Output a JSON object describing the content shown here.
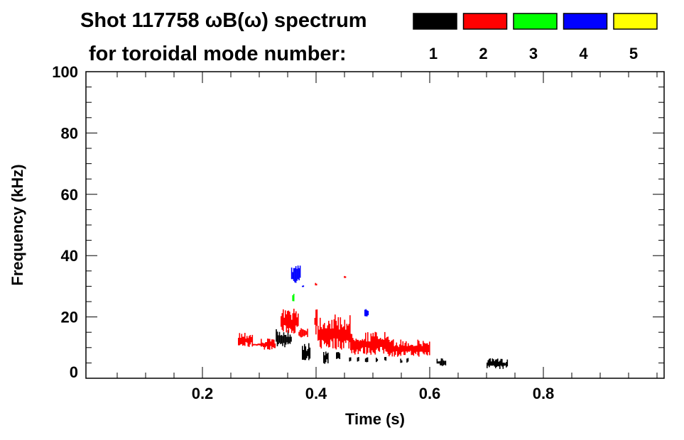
{
  "chart_data": {
    "type": "heatmap",
    "title": "Shot 117758 ωB(ω) spectrum",
    "subtitle": "for toroidal mode number:",
    "xlabel": "Time (s)",
    "ylabel": "Frequency (kHz)",
    "xlim": [
      -0.005,
      1.0125
    ],
    "ylim": [
      0,
      100
    ],
    "xticks": [
      0.2,
      0.4,
      0.6,
      0.8
    ],
    "xtick_labels": [
      "0.2",
      "0.4",
      "0.6",
      "0.8"
    ],
    "x_minor_step": 0.05,
    "yticks": [
      0,
      20,
      40,
      60,
      80,
      100
    ],
    "ytick_labels": [
      "0",
      "20",
      "40",
      "60",
      "80",
      "100"
    ],
    "y_minor_step": 5,
    "legend": [
      {
        "label": "1",
        "color": "#000000"
      },
      {
        "label": "2",
        "color": "#ff0000"
      },
      {
        "label": "3",
        "color": "#00ff00"
      },
      {
        "label": "4",
        "color": "#0000ff"
      },
      {
        "label": "5",
        "color": "#ffff00"
      }
    ],
    "legend_placement": "top-right",
    "series": [
      {
        "name": "n=1",
        "color": "#000000",
        "regions": [
          [
            0.329,
            0.356,
            10,
            16
          ],
          [
            0.375,
            0.39,
            5.3,
            11.6
          ],
          [
            0.4125,
            0.421,
            4.6,
            9.5
          ],
          [
            0.435,
            0.441,
            6,
            9
          ],
          [
            0.458,
            0.461,
            5,
            8
          ],
          [
            0.472,
            0.475,
            5,
            7.5
          ],
          [
            0.486,
            0.49,
            5,
            7.5
          ],
          [
            0.505,
            0.508,
            5,
            7
          ],
          [
            0.52,
            0.522,
            5.5,
            7
          ],
          [
            0.548,
            0.55,
            5,
            6.5
          ],
          [
            0.559,
            0.561,
            5,
            7
          ],
          [
            0.612,
            0.628,
            4,
            6.5
          ],
          [
            0.7,
            0.737,
            3,
            6.5
          ]
        ]
      },
      {
        "name": "n=2",
        "color": "#ff0000",
        "regions": [
          [
            0.2625,
            0.2875,
            10,
            15.3
          ],
          [
            0.2875,
            0.3025,
            10.6,
            11.4
          ],
          [
            0.3025,
            0.3275,
            9.3,
            13
          ],
          [
            0.3375,
            0.369,
            14.6,
            22.7
          ],
          [
            0.369,
            0.385,
            12.7,
            17
          ],
          [
            0.397,
            0.4025,
            14,
            24
          ],
          [
            0.4025,
            0.46,
            9.3,
            20.8
          ],
          [
            0.46,
            0.5275,
            7.6,
            15.3
          ],
          [
            0.5275,
            0.6,
            7,
            12.7
          ],
          [
            0.398,
            0.4,
            30,
            31.5
          ],
          [
            0.449,
            0.451,
            32.5,
            33.5
          ]
        ]
      },
      {
        "name": "n=3",
        "color": "#00ff00",
        "regions": [
          [
            0.358,
            0.36,
            25,
            27.8
          ]
        ]
      },
      {
        "name": "n=4",
        "color": "#0000ff",
        "regions": [
          [
            0.356,
            0.371,
            31,
            37
          ],
          [
            0.485,
            0.491,
            20,
            22.7
          ],
          [
            0.375,
            0.377,
            29.5,
            30.5
          ]
        ]
      },
      {
        "name": "n=5",
        "color": "#ffff00",
        "regions": []
      }
    ]
  }
}
